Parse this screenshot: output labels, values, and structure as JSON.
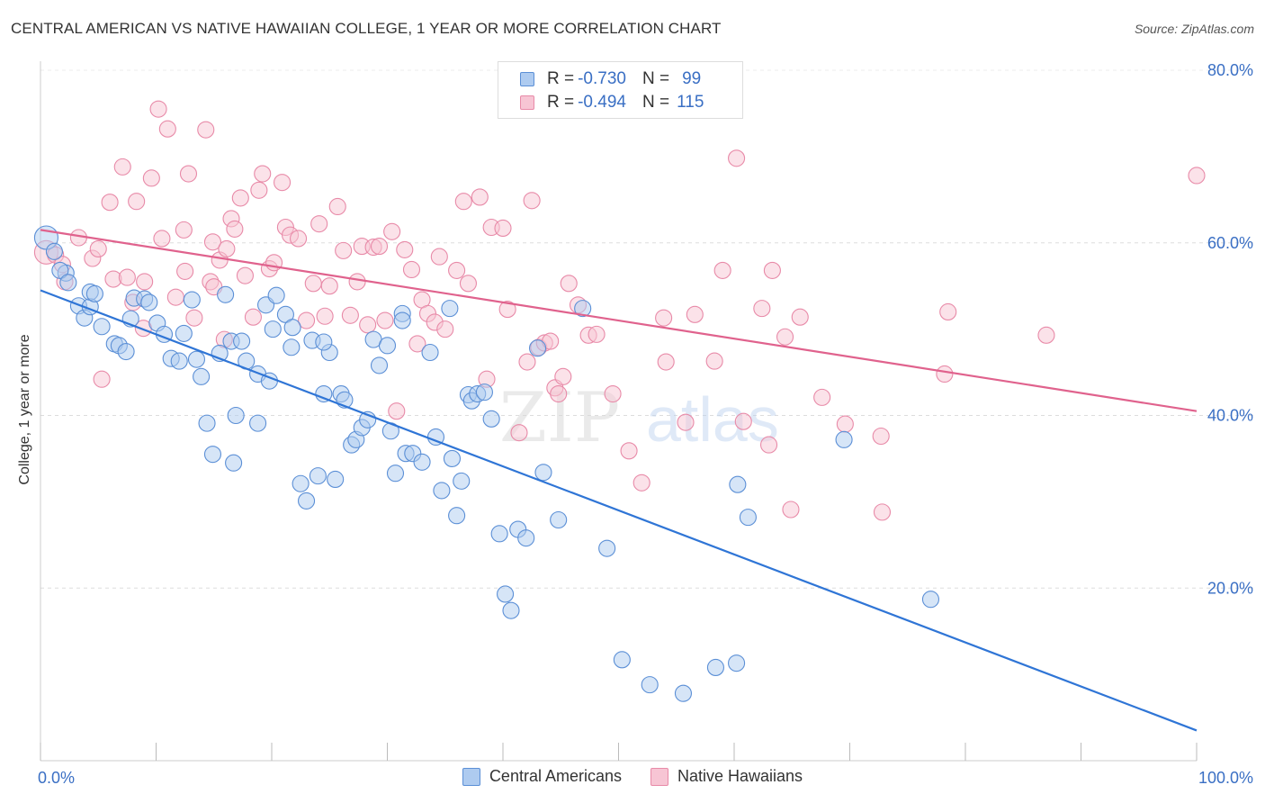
{
  "title": "CENTRAL AMERICAN VS NATIVE HAWAIIAN COLLEGE, 1 YEAR OR MORE CORRELATION CHART",
  "source": "Source: ZipAtlas.com",
  "colors": {
    "blue": "#5b8fd6",
    "blue_fill": "#aecbf0",
    "blue_line": "#2f75d6",
    "pink": "#e88aa8",
    "pink_fill": "#f7c5d4",
    "pink_line": "#e0628d",
    "accent_text": "#3a6fc4"
  },
  "legend": {
    "row1": {
      "r_label": "R =",
      "r_value": "-0.730",
      "n_label": "N =",
      "n_value": "99"
    },
    "row2": {
      "r_label": "R =",
      "r_value": "-0.494",
      "n_label": "N =",
      "n_value": "115"
    }
  },
  "chart_data": {
    "type": "scatter",
    "ylabel": "College, 1 year or more",
    "xlim": [
      0,
      100
    ],
    "ylim": [
      0,
      80
    ],
    "x_tick_labels": [
      "0.0%",
      "100.0%"
    ],
    "y_tick_labels": [
      "20.0%",
      "40.0%",
      "60.0%",
      "80.0%"
    ],
    "y_ticks": [
      20,
      40,
      60,
      80
    ],
    "grid": true,
    "legend_position": "top-center",
    "series": [
      {
        "name": "Central Americans",
        "trend": [
          [
            0,
            54.5
          ],
          [
            100,
            3.5
          ]
        ],
        "points": [
          [
            0.5,
            60.6
          ],
          [
            1.2,
            59.0
          ],
          [
            2.2,
            56.5
          ],
          [
            1.7,
            56.8
          ],
          [
            2.4,
            55.4
          ],
          [
            3.3,
            52.7
          ],
          [
            3.8,
            51.3
          ],
          [
            4.3,
            52.6
          ],
          [
            4.3,
            54.3
          ],
          [
            4.7,
            54.1
          ],
          [
            5.3,
            50.3
          ],
          [
            6.4,
            48.3
          ],
          [
            6.8,
            48.1
          ],
          [
            7.4,
            47.4
          ],
          [
            7.8,
            51.2
          ],
          [
            8.1,
            53.6
          ],
          [
            9.0,
            53.5
          ],
          [
            9.4,
            53.1
          ],
          [
            10.1,
            50.7
          ],
          [
            10.7,
            49.4
          ],
          [
            11.3,
            46.6
          ],
          [
            12.0,
            46.3
          ],
          [
            12.4,
            49.5
          ],
          [
            13.1,
            53.4
          ],
          [
            13.5,
            46.5
          ],
          [
            13.9,
            44.5
          ],
          [
            14.4,
            39.1
          ],
          [
            14.9,
            35.5
          ],
          [
            15.5,
            47.2
          ],
          [
            16.0,
            54.0
          ],
          [
            16.5,
            48.6
          ],
          [
            16.9,
            40.0
          ],
          [
            17.4,
            48.6
          ],
          [
            17.8,
            46.3
          ],
          [
            18.8,
            39.1
          ],
          [
            18.8,
            44.8
          ],
          [
            19.5,
            52.8
          ],
          [
            19.8,
            44.0
          ],
          [
            20.4,
            53.9
          ],
          [
            21.2,
            51.7
          ],
          [
            21.7,
            47.9
          ],
          [
            21.8,
            50.2
          ],
          [
            22.5,
            32.1
          ],
          [
            23.0,
            30.1
          ],
          [
            23.5,
            48.7
          ],
          [
            24.0,
            33.0
          ],
          [
            24.5,
            42.5
          ],
          [
            25.0,
            47.3
          ],
          [
            25.5,
            32.6
          ],
          [
            26.0,
            42.5
          ],
          [
            26.3,
            41.8
          ],
          [
            26.9,
            36.6
          ],
          [
            27.3,
            37.2
          ],
          [
            27.8,
            38.6
          ],
          [
            28.3,
            39.5
          ],
          [
            28.8,
            48.8
          ],
          [
            29.3,
            45.8
          ],
          [
            30.0,
            48.1
          ],
          [
            30.3,
            38.2
          ],
          [
            30.7,
            33.3
          ],
          [
            31.3,
            51.8
          ],
          [
            31.6,
            35.6
          ],
          [
            32.2,
            35.6
          ],
          [
            33.0,
            34.6
          ],
          [
            33.7,
            47.3
          ],
          [
            34.2,
            37.5
          ],
          [
            34.7,
            31.3
          ],
          [
            35.4,
            52.4
          ],
          [
            35.6,
            35.0
          ],
          [
            36.0,
            28.4
          ],
          [
            36.4,
            32.4
          ],
          [
            37.0,
            42.4
          ],
          [
            37.3,
            41.7
          ],
          [
            37.8,
            42.5
          ],
          [
            38.4,
            42.7
          ],
          [
            39.0,
            39.6
          ],
          [
            39.7,
            26.3
          ],
          [
            40.2,
            19.3
          ],
          [
            40.7,
            17.4
          ],
          [
            41.3,
            26.8
          ],
          [
            42.0,
            25.8
          ],
          [
            43.0,
            47.8
          ],
          [
            43.5,
            33.4
          ],
          [
            44.8,
            27.9
          ],
          [
            46.9,
            52.4
          ],
          [
            49.0,
            24.6
          ],
          [
            50.3,
            11.7
          ],
          [
            52.7,
            8.8
          ],
          [
            55.6,
            7.8
          ],
          [
            58.4,
            10.8
          ],
          [
            60.2,
            11.3
          ],
          [
            60.3,
            32.0
          ],
          [
            61.2,
            28.2
          ],
          [
            69.5,
            37.2
          ],
          [
            77.0,
            18.7
          ],
          [
            24.5,
            48.5
          ],
          [
            31.3,
            51.0
          ],
          [
            20.1,
            50.0
          ],
          [
            16.7,
            34.5
          ]
        ]
      },
      {
        "name": "Native Hawaiians",
        "trend": [
          [
            0,
            61.5
          ],
          [
            100,
            40.5
          ]
        ],
        "points": [
          [
            0.5,
            58.9
          ],
          [
            1.3,
            58.6
          ],
          [
            1.9,
            57.5
          ],
          [
            2.1,
            55.5
          ],
          [
            3.3,
            60.6
          ],
          [
            4.5,
            58.2
          ],
          [
            5.0,
            59.3
          ],
          [
            5.3,
            44.2
          ],
          [
            6.0,
            64.7
          ],
          [
            6.3,
            55.8
          ],
          [
            7.1,
            68.8
          ],
          [
            7.5,
            56.0
          ],
          [
            8.0,
            53.1
          ],
          [
            8.3,
            64.8
          ],
          [
            8.9,
            50.1
          ],
          [
            9.0,
            55.5
          ],
          [
            9.6,
            67.5
          ],
          [
            10.2,
            75.5
          ],
          [
            10.5,
            60.5
          ],
          [
            11.0,
            73.2
          ],
          [
            11.7,
            53.7
          ],
          [
            12.4,
            61.5
          ],
          [
            12.8,
            68.0
          ],
          [
            13.3,
            51.3
          ],
          [
            14.3,
            73.1
          ],
          [
            14.7,
            55.5
          ],
          [
            14.9,
            60.1
          ],
          [
            15.5,
            58.0
          ],
          [
            15.9,
            48.8
          ],
          [
            16.1,
            59.3
          ],
          [
            16.5,
            62.8
          ],
          [
            16.8,
            61.6
          ],
          [
            17.3,
            65.2
          ],
          [
            17.7,
            56.2
          ],
          [
            18.4,
            51.4
          ],
          [
            18.9,
            66.1
          ],
          [
            19.2,
            68.0
          ],
          [
            19.8,
            57.0
          ],
          [
            20.2,
            57.7
          ],
          [
            20.9,
            67.0
          ],
          [
            21.2,
            61.8
          ],
          [
            21.6,
            60.9
          ],
          [
            22.3,
            60.5
          ],
          [
            23.0,
            51.0
          ],
          [
            23.6,
            55.3
          ],
          [
            24.1,
            62.2
          ],
          [
            24.6,
            51.5
          ],
          [
            25.0,
            55.0
          ],
          [
            25.7,
            64.2
          ],
          [
            26.2,
            59.1
          ],
          [
            26.8,
            51.6
          ],
          [
            27.4,
            55.5
          ],
          [
            27.8,
            59.6
          ],
          [
            28.3,
            50.5
          ],
          [
            28.8,
            59.5
          ],
          [
            29.3,
            59.6
          ],
          [
            29.8,
            51.0
          ],
          [
            30.4,
            61.3
          ],
          [
            30.8,
            40.5
          ],
          [
            31.5,
            59.2
          ],
          [
            32.1,
            56.9
          ],
          [
            32.6,
            48.3
          ],
          [
            33.0,
            53.4
          ],
          [
            33.5,
            51.8
          ],
          [
            34.1,
            50.8
          ],
          [
            34.5,
            58.4
          ],
          [
            35.0,
            50.0
          ],
          [
            36.0,
            56.8
          ],
          [
            36.6,
            64.8
          ],
          [
            37.0,
            55.3
          ],
          [
            38.0,
            65.3
          ],
          [
            38.6,
            44.2
          ],
          [
            39.0,
            61.8
          ],
          [
            40.0,
            61.7
          ],
          [
            40.4,
            52.3
          ],
          [
            41.4,
            38.0
          ],
          [
            42.1,
            46.2
          ],
          [
            42.5,
            64.9
          ],
          [
            43.1,
            47.9
          ],
          [
            43.6,
            48.4
          ],
          [
            44.1,
            48.6
          ],
          [
            44.5,
            43.2
          ],
          [
            44.8,
            42.5
          ],
          [
            45.2,
            44.5
          ],
          [
            45.7,
            55.3
          ],
          [
            46.5,
            52.8
          ],
          [
            47.4,
            49.3
          ],
          [
            48.1,
            49.4
          ],
          [
            49.5,
            42.5
          ],
          [
            50.9,
            35.9
          ],
          [
            52.0,
            32.2
          ],
          [
            53.9,
            51.3
          ],
          [
            54.1,
            46.2
          ],
          [
            55.8,
            39.2
          ],
          [
            56.6,
            51.7
          ],
          [
            58.3,
            46.3
          ],
          [
            59.0,
            56.8
          ],
          [
            60.2,
            69.8
          ],
          [
            60.8,
            39.3
          ],
          [
            62.4,
            52.4
          ],
          [
            63.0,
            36.6
          ],
          [
            63.3,
            56.8
          ],
          [
            64.4,
            49.1
          ],
          [
            64.9,
            29.1
          ],
          [
            65.7,
            51.4
          ],
          [
            67.6,
            42.1
          ],
          [
            69.6,
            39.0
          ],
          [
            72.7,
            37.6
          ],
          [
            72.8,
            28.8
          ],
          [
            78.5,
            52.0
          ],
          [
            78.2,
            44.8
          ],
          [
            87.0,
            49.3
          ],
          [
            100,
            67.8
          ],
          [
            15.0,
            54.9
          ],
          [
            12.5,
            56.7
          ]
        ]
      }
    ]
  },
  "bottom_legend": {
    "blue_label": "Central Americans",
    "pink_label": "Native Hawaiians"
  }
}
